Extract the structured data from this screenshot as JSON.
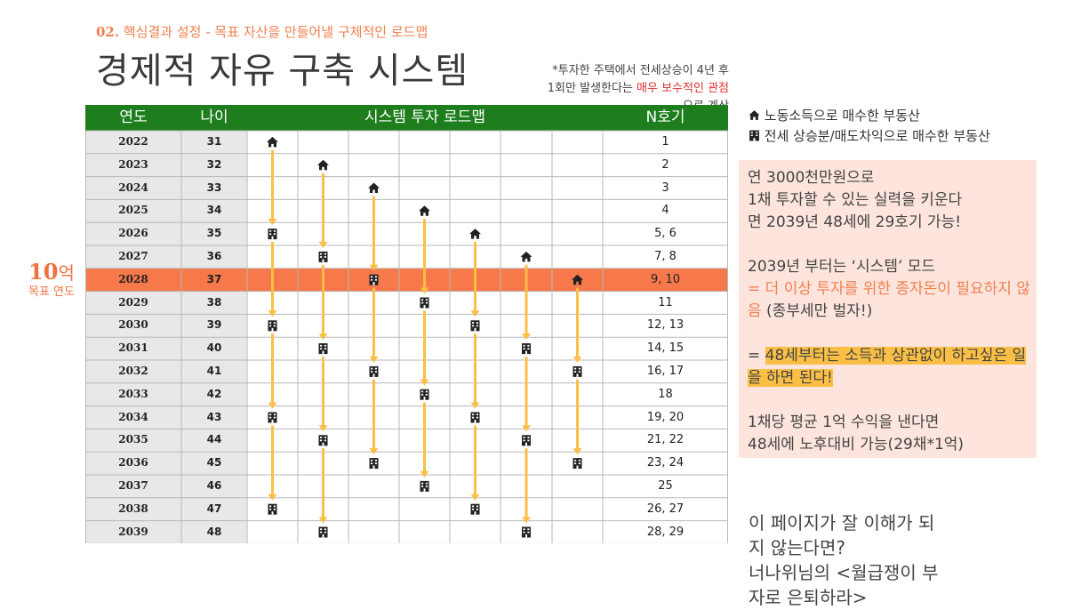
{
  "subtitle": {
    "num": "02.",
    "text": " 핵심결과 설정 - 목표 자산을 만들어낼 구체적인 로드맵"
  },
  "title": "경제적 자유 구축 시스템",
  "note": {
    "line1": "*투자한 주택에서 전세상승이 4년 후",
    "line2a": "1회만 발생한다는 ",
    "line2b": "매우 보수적인 관점",
    "line3": "으로 계산"
  },
  "goal": {
    "num": "10",
    "unit": "억",
    "label": "목표 연도"
  },
  "table": {
    "headers": {
      "year": "연도",
      "age": "나이",
      "system": "시스템 투자 로드맵",
      "n": "N호기"
    },
    "rows": [
      {
        "year": "2022",
        "age": "31",
        "n": "1",
        "marks": [
          [
            0,
            "h"
          ]
        ]
      },
      {
        "year": "2023",
        "age": "32",
        "n": "2",
        "marks": [
          [
            1,
            "h"
          ]
        ]
      },
      {
        "year": "2024",
        "age": "33",
        "n": "3",
        "marks": [
          [
            2,
            "h"
          ]
        ]
      },
      {
        "year": "2025",
        "age": "34",
        "n": "4",
        "marks": [
          [
            3,
            "h"
          ]
        ]
      },
      {
        "year": "2026",
        "age": "35",
        "n": "5, 6",
        "marks": [
          [
            0,
            "b"
          ],
          [
            4,
            "h"
          ]
        ]
      },
      {
        "year": "2027",
        "age": "36",
        "n": "7, 8",
        "marks": [
          [
            1,
            "b"
          ],
          [
            5,
            "h"
          ]
        ]
      },
      {
        "year": "2028",
        "age": "37",
        "n": "9, 10",
        "marks": [
          [
            2,
            "b"
          ],
          [
            6,
            "h"
          ]
        ]
      },
      {
        "year": "2029",
        "age": "38",
        "n": "11",
        "marks": [
          [
            3,
            "b"
          ]
        ]
      },
      {
        "year": "2030",
        "age": "39",
        "n": "12, 13",
        "marks": [
          [
            0,
            "b"
          ],
          [
            4,
            "b"
          ]
        ]
      },
      {
        "year": "2031",
        "age": "40",
        "n": "14, 15",
        "marks": [
          [
            1,
            "b"
          ],
          [
            5,
            "b"
          ]
        ]
      },
      {
        "year": "2032",
        "age": "41",
        "n": "16, 17",
        "marks": [
          [
            2,
            "b"
          ],
          [
            6,
            "b"
          ]
        ]
      },
      {
        "year": "2033",
        "age": "42",
        "n": "18",
        "marks": [
          [
            3,
            "b"
          ]
        ]
      },
      {
        "year": "2034",
        "age": "43",
        "n": "19, 20",
        "marks": [
          [
            0,
            "b"
          ],
          [
            4,
            "b"
          ]
        ]
      },
      {
        "year": "2035",
        "age": "44",
        "n": "21, 22",
        "marks": [
          [
            1,
            "b"
          ],
          [
            5,
            "b"
          ]
        ]
      },
      {
        "year": "2036",
        "age": "45",
        "n": "23, 24",
        "marks": [
          [
            2,
            "b"
          ],
          [
            6,
            "b"
          ]
        ]
      },
      {
        "year": "2037",
        "age": "46",
        "n": "25",
        "marks": [
          [
            3,
            "b"
          ]
        ]
      },
      {
        "year": "2038",
        "age": "47",
        "n": "26, 27",
        "marks": [
          [
            0,
            "b"
          ],
          [
            4,
            "b"
          ]
        ]
      },
      {
        "year": "2039",
        "age": "48",
        "n": "28, 29",
        "marks": [
          [
            1,
            "b"
          ],
          [
            5,
            "b"
          ]
        ]
      }
    ],
    "highlight_year": "2028"
  },
  "legend": {
    "house": "노동소득으로 매수한 부동산",
    "building": "전세 상승분/매도차익으로 매수한 부동산"
  },
  "box": {
    "p1": [
      "연 3000천만원으로",
      "1채 투자할 수 있는 실력을 키운다",
      "면 2039년 48세에  29호기 가능!"
    ],
    "p2a": "2039년 부터는 ‘시스템’ 모드",
    "p2b": "= 더 이상 투자를 위한 종자돈이 필요하지 않음",
    "p2c": " (종부세만 벌자!)",
    "p3a": "= ",
    "p3b": "48세부터는 소득과 상관없이 하고싶은 일을 하면 된다!",
    "p4": [
      "1채당 평균 1억 수익을 낸다면",
      "48세에 노후대비 가능(29채*1억)"
    ]
  },
  "bottom": [
    "이 페이지가 잘 이해가 되",
    "지 않는다면?",
    "너나위님의 <월급쟁이 부",
    "자로 은퇴하라>"
  ],
  "colors": {
    "header_green": "#1e7e1e",
    "highlight": "#f7784a",
    "arrow": "#fbbf45",
    "box_bg": "#fde4dc",
    "accent": "#f08050"
  },
  "icons": {
    "house": "house-icon",
    "building": "building-icon"
  }
}
